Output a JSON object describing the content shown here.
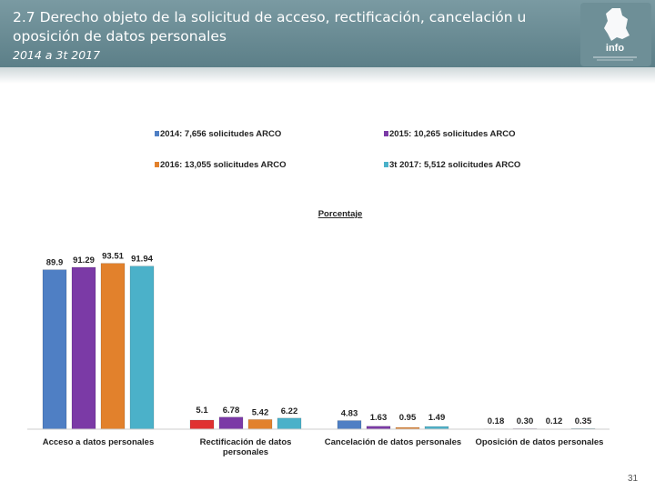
{
  "slide": {
    "title": "2.7 Derecho objeto de la solicitud de acceso, rectificación, cancelación u oposición de datos personales",
    "subtitle": "2014 a 3t 2017",
    "logo_text": "info",
    "page_number": "31"
  },
  "colors": {
    "header": "#6a8c94",
    "series": [
      "#4f7fc4",
      "#7b3aa6",
      "#e2812c",
      "#4bb1c9",
      "#e03131"
    ]
  },
  "chart_data": {
    "type": "bar",
    "title": "Porcentaje",
    "categories": [
      "Acceso a datos personales",
      "Rectificación de datos personales",
      "Cancelación de datos personales",
      "Oposición de datos personales"
    ],
    "series": [
      {
        "name": "2014: 7,656 solicitudes ARCO",
        "values": [
          89.9,
          5.1,
          4.83,
          0.18
        ]
      },
      {
        "name": "2015: 10,265 solicitudes ARCO",
        "values": [
          91.29,
          6.78,
          1.63,
          0.3
        ]
      },
      {
        "name": "2016: 13,055 solicitudes ARCO",
        "values": [
          93.51,
          5.42,
          0.95,
          0.12
        ]
      },
      {
        "name": "3t 2017: 5,512 solicitudes ARCO",
        "values": [
          91.94,
          6.22,
          1.49,
          0.35
        ]
      }
    ],
    "value_labels": [
      [
        "89.9",
        "5.1",
        "4.83",
        "0.18"
      ],
      [
        "91.29",
        "6.78",
        "1.63",
        "0.30"
      ],
      [
        "93.51",
        "5.42",
        "0.95",
        "0.12"
      ],
      [
        "91.94",
        "6.22",
        "1.49",
        "0.35"
      ]
    ],
    "ylim": [
      0,
      100
    ],
    "grid": false,
    "legend_position": "top"
  }
}
